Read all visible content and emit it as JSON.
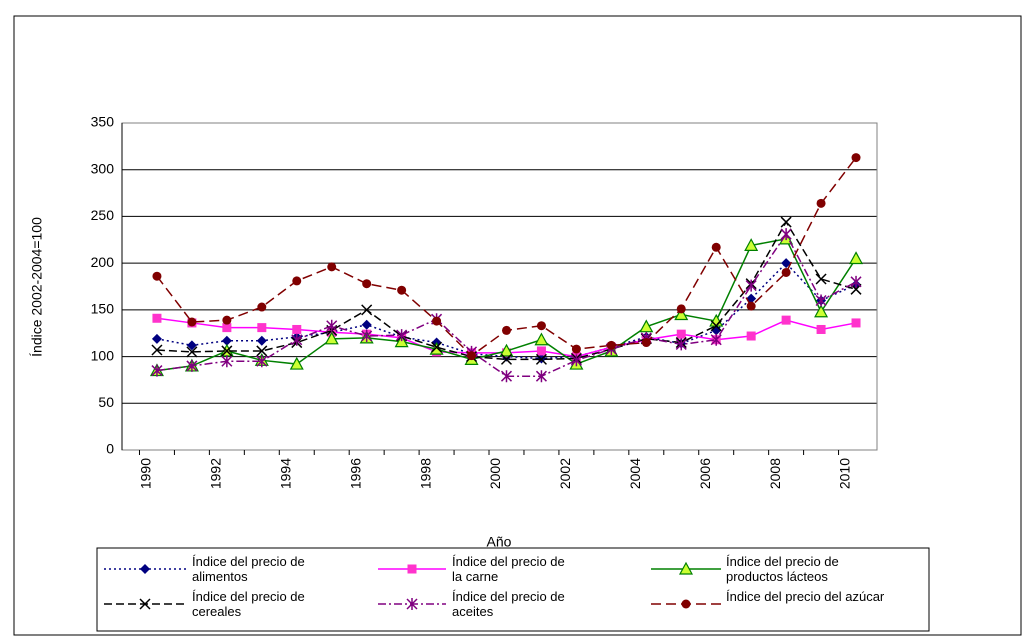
{
  "chart_data": {
    "type": "line",
    "y_label": "Índice 2002-2004=100",
    "x_label": "Año",
    "categories": [
      "1990",
      null,
      "1992",
      null,
      "1994",
      null,
      "1996",
      null,
      "1998",
      null,
      "2000",
      null,
      "2002",
      null,
      "2004",
      null,
      "2006",
      null,
      "2008",
      null,
      "2010"
    ],
    "ylim": [
      0,
      350
    ],
    "yticks": [
      0,
      50,
      100,
      150,
      200,
      250,
      300,
      350
    ],
    "grid": true,
    "series": [
      {
        "name": "Índice del precio de alimentos",
        "color": "#000080",
        "marker": "diamond",
        "dash": "2,3",
        "values": [
          119,
          112,
          117,
          117,
          121,
          126,
          134,
          121,
          115,
          103,
          100,
          98,
          100,
          110,
          121,
          114,
          128,
          162,
          200,
          160,
          177
        ]
      },
      {
        "name": "Índice del precio de la carne",
        "color": "#ff33cc",
        "marker": "square",
        "dash": "none",
        "values": [
          141,
          136,
          131,
          131,
          129,
          126,
          124,
          120,
          105,
          104,
          104,
          106,
          100,
          110,
          118,
          124,
          118,
          122,
          139,
          129,
          136
        ]
      },
      {
        "name": "Índice del precio de productos lácteos",
        "color": "#008000",
        "marker": "triangle",
        "dash": "none",
        "values": [
          85,
          90,
          106,
          96,
          92,
          119,
          120,
          116,
          108,
          97,
          106,
          118,
          92,
          106,
          132,
          145,
          138,
          219,
          226,
          148,
          205
        ]
      },
      {
        "name": "Índice del precio de cereales",
        "color": "#000000",
        "marker": "x",
        "dash": "8,4",
        "values": [
          107,
          105,
          106,
          106,
          115,
          128,
          150,
          122,
          110,
          100,
          97,
          97,
          98,
          108,
          119,
          115,
          133,
          178,
          244,
          183,
          172
        ]
      },
      {
        "name": "Índice del precio de aceites",
        "color": "#800080",
        "marker": "star",
        "dash": "8,3,2,3",
        "values": [
          85,
          90,
          95,
          95,
          118,
          133,
          122,
          123,
          140,
          105,
          79,
          79,
          96,
          108,
          120,
          113,
          118,
          176,
          231,
          160,
          180
        ]
      },
      {
        "name": "Índice del precio del azúcar",
        "color": "#800000",
        "marker": "circle",
        "dash": "10,5",
        "values": [
          186,
          137,
          139,
          153,
          181,
          196,
          178,
          171,
          138,
          101,
          128,
          133,
          108,
          112,
          115,
          151,
          217,
          154,
          190,
          264,
          313
        ]
      }
    ]
  }
}
